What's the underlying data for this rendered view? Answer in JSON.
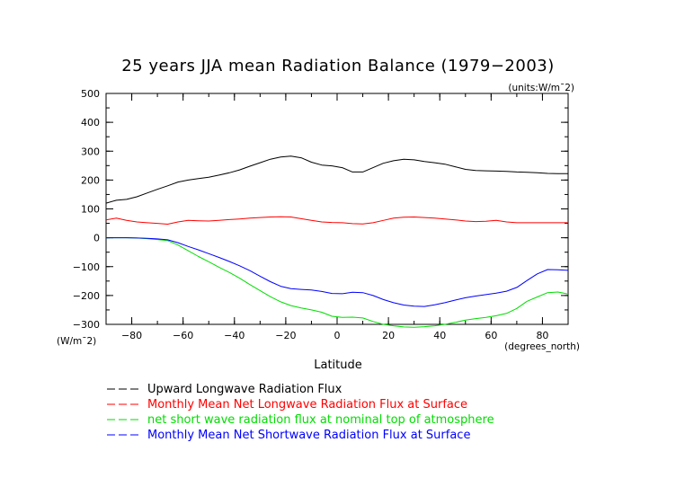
{
  "chart_data": {
    "type": "line",
    "title": "25 years JJA mean Radiation Balance (1979−2003)",
    "units_note": "(units:W/m¯2)",
    "xlabel": "Latitude",
    "xunits": "(degrees_north)",
    "yunits": "(W/m¯2)",
    "xlim": [
      -90,
      90
    ],
    "ylim": [
      -300,
      500
    ],
    "xticks": [
      -80,
      -60,
      -40,
      -20,
      0,
      20,
      40,
      60,
      80
    ],
    "xtick_labels": [
      "−80",
      "−60",
      "−40",
      "−20",
      "0",
      "20",
      "40",
      "60",
      "80"
    ],
    "yticks": [
      -300,
      -200,
      -100,
      0,
      100,
      200,
      300,
      400,
      500
    ],
    "ytick_labels": [
      "−300",
      "−200",
      "−100",
      "0",
      "100",
      "200",
      "300",
      "400",
      "500"
    ],
    "grid": false,
    "legend_position": "bottom",
    "x": [
      -90,
      -86,
      -82,
      -78,
      -74,
      -70,
      -66,
      -62,
      -58,
      -54,
      -50,
      -46,
      -42,
      -38,
      -34,
      -30,
      -26,
      -22,
      -18,
      -14,
      -10,
      -6,
      -2,
      2,
      6,
      10,
      14,
      18,
      22,
      26,
      30,
      34,
      38,
      42,
      46,
      50,
      54,
      58,
      62,
      66,
      70,
      74,
      78,
      82,
      86,
      90
    ],
    "series": [
      {
        "name": "Upward Longwave Radiation Flux",
        "color": "#000000",
        "values": [
          120,
          130,
          133,
          142,
          155,
          168,
          180,
          193,
          200,
          205,
          210,
          217,
          225,
          235,
          248,
          260,
          272,
          280,
          283,
          277,
          262,
          252,
          249,
          243,
          228,
          228,
          243,
          258,
          267,
          272,
          270,
          264,
          260,
          255,
          246,
          237,
          233,
          232,
          231,
          230,
          228,
          227,
          225,
          223,
          222,
          222
        ]
      },
      {
        "name": "Monthly Mean Net Longwave Radiation Flux at Surface",
        "color": "#ff0000",
        "values": [
          62,
          68,
          60,
          55,
          52,
          50,
          47,
          55,
          60,
          59,
          58,
          60,
          63,
          65,
          68,
          70,
          72,
          73,
          72,
          66,
          60,
          55,
          53,
          52,
          49,
          48,
          52,
          60,
          68,
          71,
          72,
          70,
          68,
          65,
          62,
          58,
          56,
          57,
          60,
          55,
          52,
          52,
          52,
          52,
          52,
          52
        ]
      },
      {
        "name": "net short wave radiation flux at nominal top of atmosphere",
        "color": "#00dd00",
        "values": [
          0,
          0,
          0,
          -1,
          -3,
          -6,
          -10,
          -25,
          -45,
          -65,
          -83,
          -102,
          -120,
          -140,
          -162,
          -183,
          -204,
          -222,
          -235,
          -243,
          -250,
          -258,
          -272,
          -276,
          -275,
          -278,
          -290,
          -300,
          -305,
          -309,
          -310,
          -308,
          -305,
          -300,
          -293,
          -285,
          -280,
          -276,
          -270,
          -262,
          -245,
          -220,
          -205,
          -190,
          -188,
          -195
        ]
      },
      {
        "name": "Monthly Mean Net Shortwave Radiation Flux at Surface",
        "color": "#0000ff",
        "values": [
          0,
          0,
          0,
          -1,
          -2,
          -4,
          -7,
          -17,
          -30,
          -42,
          -55,
          -68,
          -82,
          -97,
          -114,
          -133,
          -152,
          -168,
          -176,
          -179,
          -181,
          -186,
          -193,
          -194,
          -189,
          -190,
          -200,
          -214,
          -225,
          -233,
          -237,
          -238,
          -232,
          -225,
          -216,
          -208,
          -202,
          -197,
          -192,
          -185,
          -172,
          -148,
          -125,
          -110,
          -111,
          -113
        ]
      }
    ]
  }
}
